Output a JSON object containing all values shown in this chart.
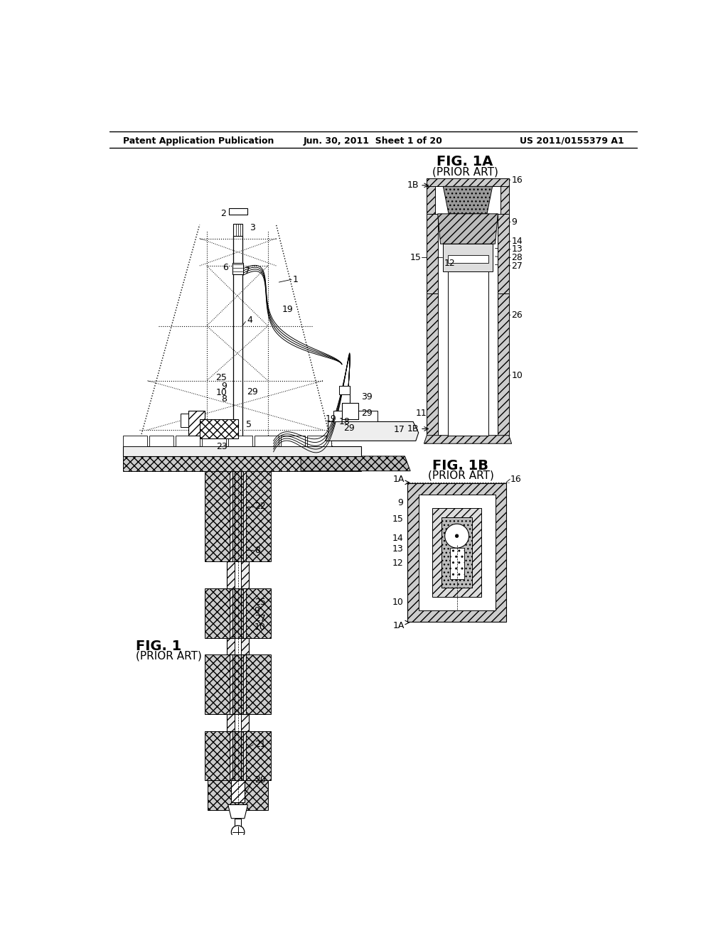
{
  "page_title_left": "Patent Application Publication",
  "page_title_center": "Jun. 30, 2011  Sheet 1 of 20",
  "page_title_right": "US 2011/0155379 A1",
  "fig1_title": "FIG. 1",
  "fig1_subtitle": "(PRIOR ART)",
  "fig1a_title": "FIG. 1A",
  "fig1a_subtitle": "(PRIOR ART)",
  "fig1b_title": "FIG. 1B",
  "fig1b_subtitle": "(PRIOR ART)",
  "bg_color": "#ffffff"
}
